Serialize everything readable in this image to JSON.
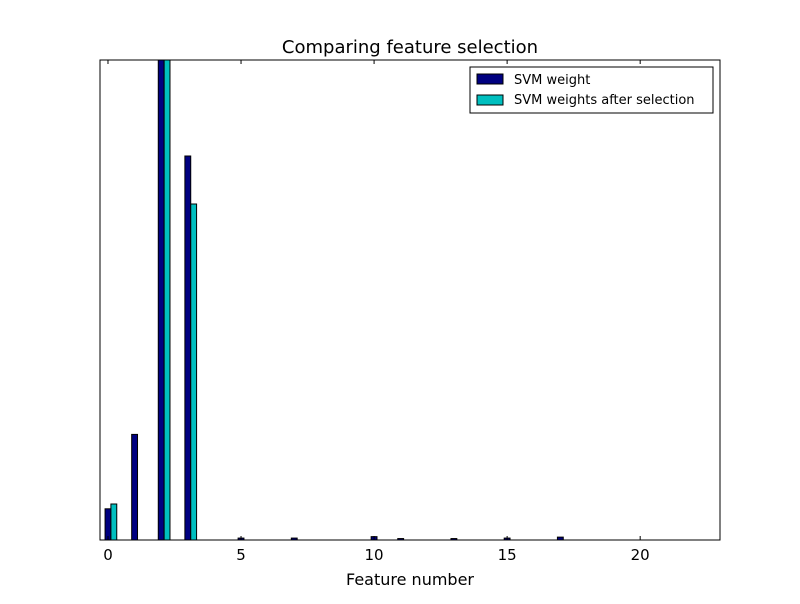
{
  "chart_data": {
    "type": "bar",
    "title": "Comparing feature selection",
    "xlabel": "Feature number",
    "ylabel": "",
    "xlim": [
      -0.3,
      23
    ],
    "ylim": [
      0,
      1
    ],
    "x_ticks": [
      0,
      5,
      10,
      15,
      20
    ],
    "y_ticks_shown": false,
    "grid": false,
    "legend_position": "top-right",
    "colors": {
      "svm_weight": "#000080",
      "svm_weights_after_selection": "#00bfbf"
    },
    "series": [
      {
        "name": "SVM weight",
        "x": [
          0,
          1,
          2,
          3,
          4,
          5,
          6,
          7,
          8,
          9,
          10,
          11,
          12,
          13,
          14,
          15,
          16,
          17,
          18,
          19,
          20,
          21,
          22
        ],
        "values": [
          0.065,
          0.22,
          1.0,
          0.8,
          0.0,
          0.004,
          0.0,
          0.004,
          0.0,
          0.0,
          0.007,
          0.003,
          0.0,
          0.003,
          0.0,
          0.004,
          0.0,
          0.006,
          0.0,
          0.0,
          0.0,
          0.0,
          0.0
        ]
      },
      {
        "name": "SVM weights after selection",
        "x": [
          0,
          1,
          2,
          3
        ],
        "values": [
          0.075,
          0.0,
          1.0,
          0.7
        ]
      }
    ]
  }
}
